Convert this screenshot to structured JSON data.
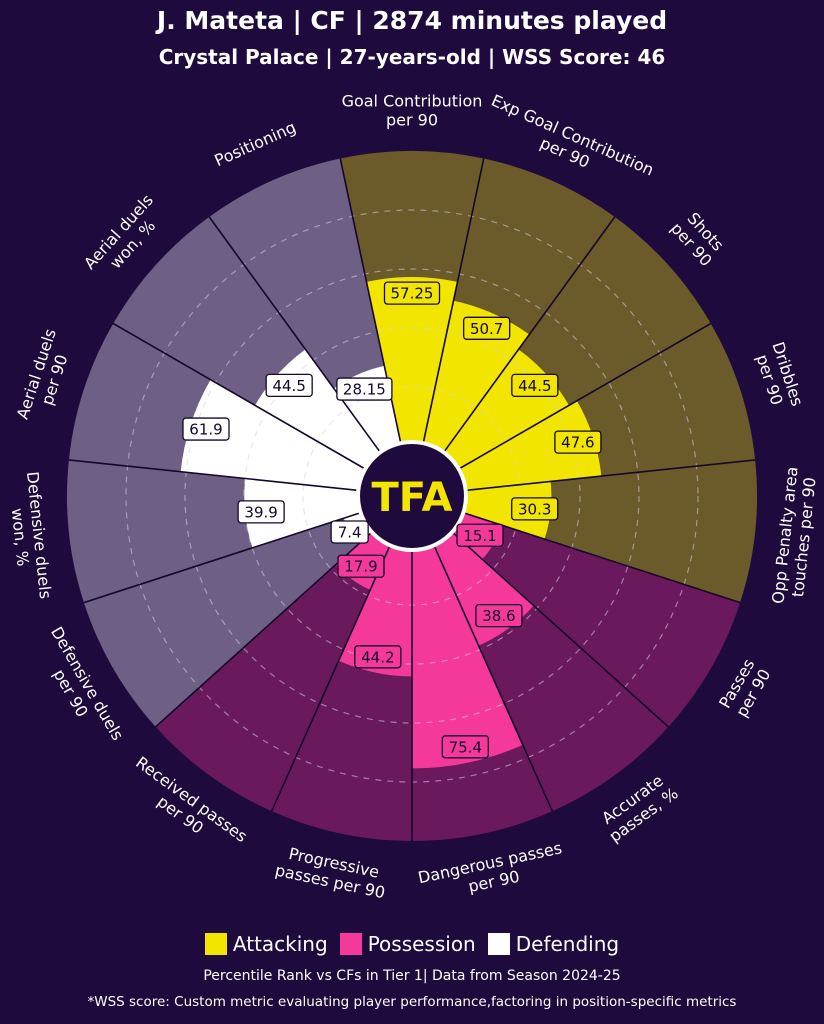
{
  "header": {
    "title": "J. Mateta | CF | 2874 minutes played",
    "subtitle": "Crystal Palace | 27-years-old | WSS Score: 46"
  },
  "logo_text": "TFA",
  "colors": {
    "background": "#1e0a3c",
    "attacking": "#f2e600",
    "attacking_bg": "#6b5a2a",
    "possession": "#f5399a",
    "possession_bg": "#6a1a5c",
    "defending": "#ffffff",
    "defending_bg": "#6e5f85"
  },
  "chart_data": {
    "type": "polar-bar",
    "rlim": [
      0,
      100
    ],
    "grid": true,
    "categories": [
      {
        "label": [
          "Goal Contribution",
          "per 90"
        ],
        "value": 57.25,
        "label_text": "57.25",
        "group": "attacking"
      },
      {
        "label": [
          "Exp Goal Contribution",
          "per 90"
        ],
        "value": 50.7,
        "label_text": "50.7",
        "group": "attacking"
      },
      {
        "label": [
          "Shots",
          "per 90"
        ],
        "value": 44.5,
        "label_text": "44.5",
        "group": "attacking"
      },
      {
        "label": [
          "Dribbles",
          "per 90"
        ],
        "value": 47.6,
        "label_text": "47.6",
        "group": "attacking"
      },
      {
        "label": [
          "Opp Penalty area",
          "touches per 90"
        ],
        "value": 30.3,
        "label_text": "30.3",
        "group": "attacking"
      },
      {
        "label": [
          "Passes",
          "per 90"
        ],
        "value": 15.1,
        "label_text": "15.1",
        "group": "possession"
      },
      {
        "label": [
          "Accurate",
          "passes, %"
        ],
        "value": 38.6,
        "label_text": "38.6",
        "group": "possession"
      },
      {
        "label": [
          "Dangerous passes",
          "per 90"
        ],
        "value": 75.4,
        "label_text": "75.4",
        "group": "possession"
      },
      {
        "label": [
          "Progressive",
          "passes per 90"
        ],
        "value": 44.2,
        "label_text": "44.2",
        "group": "possession"
      },
      {
        "label": [
          "Received passes",
          "per 90"
        ],
        "value": 17.9,
        "label_text": "17.9",
        "group": "possession"
      },
      {
        "label": [
          "Defensive duels",
          "per 90"
        ],
        "value": 7.4,
        "label_text": "7.4",
        "group": "defending"
      },
      {
        "label": [
          "Defensive duels",
          "won, %"
        ],
        "value": 39.9,
        "label_text": "39.9",
        "group": "defending"
      },
      {
        "label": [
          "Aerial duels",
          "per 90"
        ],
        "value": 61.9,
        "label_text": "61.9",
        "group": "defending"
      },
      {
        "label": [
          "Aerial duels",
          "won, %"
        ],
        "value": 44.5,
        "label_text": "44.5",
        "group": "defending"
      },
      {
        "label": [
          "Positioning"
        ],
        "value": 28.15,
        "label_text": "28.15",
        "group": "defending"
      }
    ],
    "legend": [
      "Attacking",
      "Possession",
      "Defending"
    ],
    "legend_position": "bottom"
  },
  "legend": {
    "attacking": "Attacking",
    "possession": "Possession",
    "defending": "Defending"
  },
  "footer": {
    "note": "Percentile Rank vs CFs in Tier 1| Data from Season 2024-25",
    "wss_note": "*WSS score: Custom metric evaluating player performance,factoring in position-specific metrics"
  }
}
